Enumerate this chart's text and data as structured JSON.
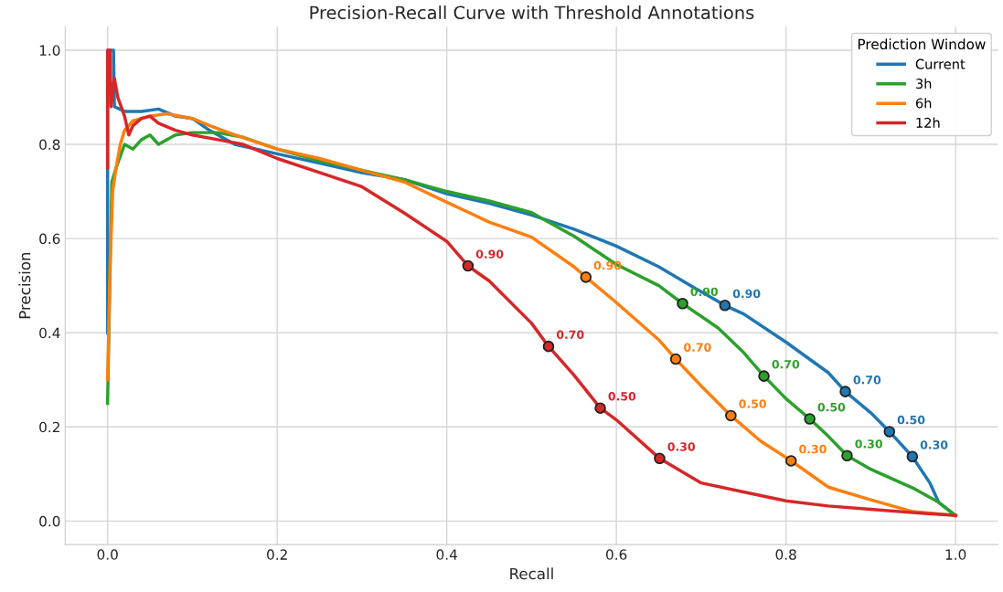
{
  "chart_data": {
    "type": "line",
    "title": "Precision-Recall Curve with Threshold Annotations",
    "xlabel": "Recall",
    "ylabel": "Precision",
    "legend_title": "Prediction Window",
    "legend": "top right",
    "grid": true,
    "marker": "none",
    "line_style": "solid",
    "xlim": [
      -0.05,
      1.05
    ],
    "ylim": [
      -0.05,
      1.05
    ],
    "xticks": [
      {
        "value": 0,
        "label": "0.0"
      },
      {
        "value": 0.2,
        "label": "0.2"
      },
      {
        "value": 0.4,
        "label": "0.4"
      },
      {
        "value": 0.6,
        "label": "0.6"
      },
      {
        "value": 0.8,
        "label": "0.8"
      },
      {
        "value": 1,
        "label": "1.0"
      }
    ],
    "yticks": [
      {
        "value": 0,
        "label": "0.0"
      },
      {
        "value": 0.2,
        "label": "0.2"
      },
      {
        "value": 0.4,
        "label": "0.4"
      },
      {
        "value": 0.6,
        "label": "0.6"
      },
      {
        "value": 0.8,
        "label": "0.8"
      },
      {
        "value": 1,
        "label": "1.0"
      }
    ],
    "series": [
      {
        "name": "Current",
        "color": "#1f77b4",
        "x": [
          0.0,
          0.0,
          0.007,
          0.008,
          0.02,
          0.04,
          0.06,
          0.08,
          0.1,
          0.12,
          0.15,
          0.2,
          0.25,
          0.3,
          0.35,
          0.4,
          0.45,
          0.5,
          0.55,
          0.6,
          0.65,
          0.7,
          0.728,
          0.75,
          0.8,
          0.85,
          0.87,
          0.9,
          0.922,
          0.949,
          0.97,
          0.98,
          1.0
        ],
        "values": [
          0.4,
          1.0,
          1.0,
          0.88,
          0.87,
          0.87,
          0.875,
          0.86,
          0.855,
          0.83,
          0.8,
          0.78,
          0.76,
          0.74,
          0.725,
          0.695,
          0.675,
          0.65,
          0.62,
          0.584,
          0.54,
          0.487,
          0.458,
          0.44,
          0.38,
          0.315,
          0.275,
          0.23,
          0.19,
          0.137,
          0.08,
          0.04,
          0.012
        ]
      },
      {
        "name": "3h",
        "color": "#2ca02c",
        "x": [
          0.0,
          0.002,
          0.005,
          0.01,
          0.02,
          0.03,
          0.04,
          0.05,
          0.06,
          0.08,
          0.1,
          0.13,
          0.16,
          0.2,
          0.25,
          0.3,
          0.35,
          0.4,
          0.45,
          0.5,
          0.55,
          0.6,
          0.65,
          0.678,
          0.72,
          0.75,
          0.774,
          0.8,
          0.828,
          0.85,
          0.872,
          0.9,
          0.95,
          0.98,
          1.0
        ],
        "values": [
          0.25,
          0.45,
          0.72,
          0.75,
          0.8,
          0.79,
          0.81,
          0.82,
          0.8,
          0.82,
          0.825,
          0.825,
          0.815,
          0.79,
          0.765,
          0.745,
          0.725,
          0.7,
          0.68,
          0.655,
          0.605,
          0.545,
          0.5,
          0.462,
          0.41,
          0.358,
          0.308,
          0.26,
          0.217,
          0.18,
          0.139,
          0.11,
          0.07,
          0.04,
          0.012
        ]
      },
      {
        "name": "6h",
        "color": "#ff7f0e",
        "x": [
          0.0,
          0.003,
          0.006,
          0.01,
          0.015,
          0.02,
          0.03,
          0.05,
          0.07,
          0.1,
          0.12,
          0.15,
          0.2,
          0.25,
          0.3,
          0.35,
          0.4,
          0.45,
          0.5,
          0.55,
          0.564,
          0.6,
          0.65,
          0.67,
          0.7,
          0.735,
          0.77,
          0.806,
          0.85,
          0.9,
          0.95,
          1.0
        ],
        "values": [
          0.3,
          0.55,
          0.7,
          0.75,
          0.8,
          0.83,
          0.85,
          0.86,
          0.865,
          0.855,
          0.84,
          0.82,
          0.79,
          0.77,
          0.745,
          0.72,
          0.677,
          0.635,
          0.603,
          0.54,
          0.518,
          0.464,
          0.385,
          0.344,
          0.287,
          0.224,
          0.17,
          0.128,
          0.072,
          0.045,
          0.02,
          0.012
        ]
      },
      {
        "name": "12h",
        "color": "#d62728",
        "x": [
          0.0,
          0.0,
          0.003,
          0.004,
          0.008,
          0.012,
          0.02,
          0.025,
          0.03,
          0.04,
          0.05,
          0.06,
          0.08,
          0.1,
          0.13,
          0.16,
          0.2,
          0.25,
          0.3,
          0.35,
          0.4,
          0.425,
          0.45,
          0.5,
          0.52,
          0.55,
          0.581,
          0.6,
          0.651,
          0.7,
          0.75,
          0.8,
          0.85,
          0.9,
          0.95,
          1.0
        ],
        "values": [
          0.75,
          1.0,
          1.0,
          0.88,
          0.94,
          0.9,
          0.86,
          0.82,
          0.84,
          0.855,
          0.86,
          0.845,
          0.83,
          0.82,
          0.81,
          0.8,
          0.77,
          0.74,
          0.71,
          0.654,
          0.594,
          0.542,
          0.51,
          0.42,
          0.371,
          0.31,
          0.24,
          0.215,
          0.133,
          0.081,
          0.062,
          0.043,
          0.032,
          0.025,
          0.018,
          0.012
        ]
      },
      {
        "type": "scatter",
        "marker": "circle",
        "color": "#1f77b4",
        "x": [
          0.728,
          0.87,
          0.922,
          0.949
        ],
        "values": [
          0.458,
          0.275,
          0.19,
          0.137
        ]
      },
      {
        "type": "scatter",
        "marker": "circle",
        "color": "#2ca02c",
        "x": [
          0.678,
          0.774,
          0.828,
          0.872
        ],
        "values": [
          0.462,
          0.308,
          0.217,
          0.139
        ]
      },
      {
        "type": "scatter",
        "marker": "circle",
        "color": "#ff7f0e",
        "x": [
          0.564,
          0.67,
          0.735,
          0.806
        ],
        "values": [
          0.518,
          0.344,
          0.224,
          0.128
        ]
      },
      {
        "type": "scatter",
        "marker": "circle",
        "color": "#d62728",
        "x": [
          0.425,
          0.52,
          0.581,
          0.651
        ],
        "values": [
          0.542,
          0.371,
          0.24,
          0.133
        ]
      }
    ],
    "annotations": [
      {
        "text": "0.90",
        "x": 0.728,
        "y": 0.458
      },
      {
        "text": "0.70",
        "x": 0.87,
        "y": 0.275
      },
      {
        "text": "0.50",
        "x": 0.922,
        "y": 0.19
      },
      {
        "text": "0.30",
        "x": 0.949,
        "y": 0.137
      },
      {
        "text": "0.90",
        "x": 0.678,
        "y": 0.462
      },
      {
        "text": "0.70",
        "x": 0.774,
        "y": 0.308
      },
      {
        "text": "0.50",
        "x": 0.828,
        "y": 0.217
      },
      {
        "text": "0.30",
        "x": 0.872,
        "y": 0.139
      },
      {
        "text": "0.90",
        "x": 0.564,
        "y": 0.518
      },
      {
        "text": "0.70",
        "x": 0.67,
        "y": 0.344
      },
      {
        "text": "0.50",
        "x": 0.735,
        "y": 0.224
      },
      {
        "text": "0.30",
        "x": 0.806,
        "y": 0.128
      },
      {
        "text": "0.90",
        "x": 0.425,
        "y": 0.542
      },
      {
        "text": "0.70",
        "x": 0.52,
        "y": 0.371
      },
      {
        "text": "0.50",
        "x": 0.581,
        "y": 0.24
      },
      {
        "text": "0.30",
        "x": 0.651,
        "y": 0.133
      }
    ]
  }
}
